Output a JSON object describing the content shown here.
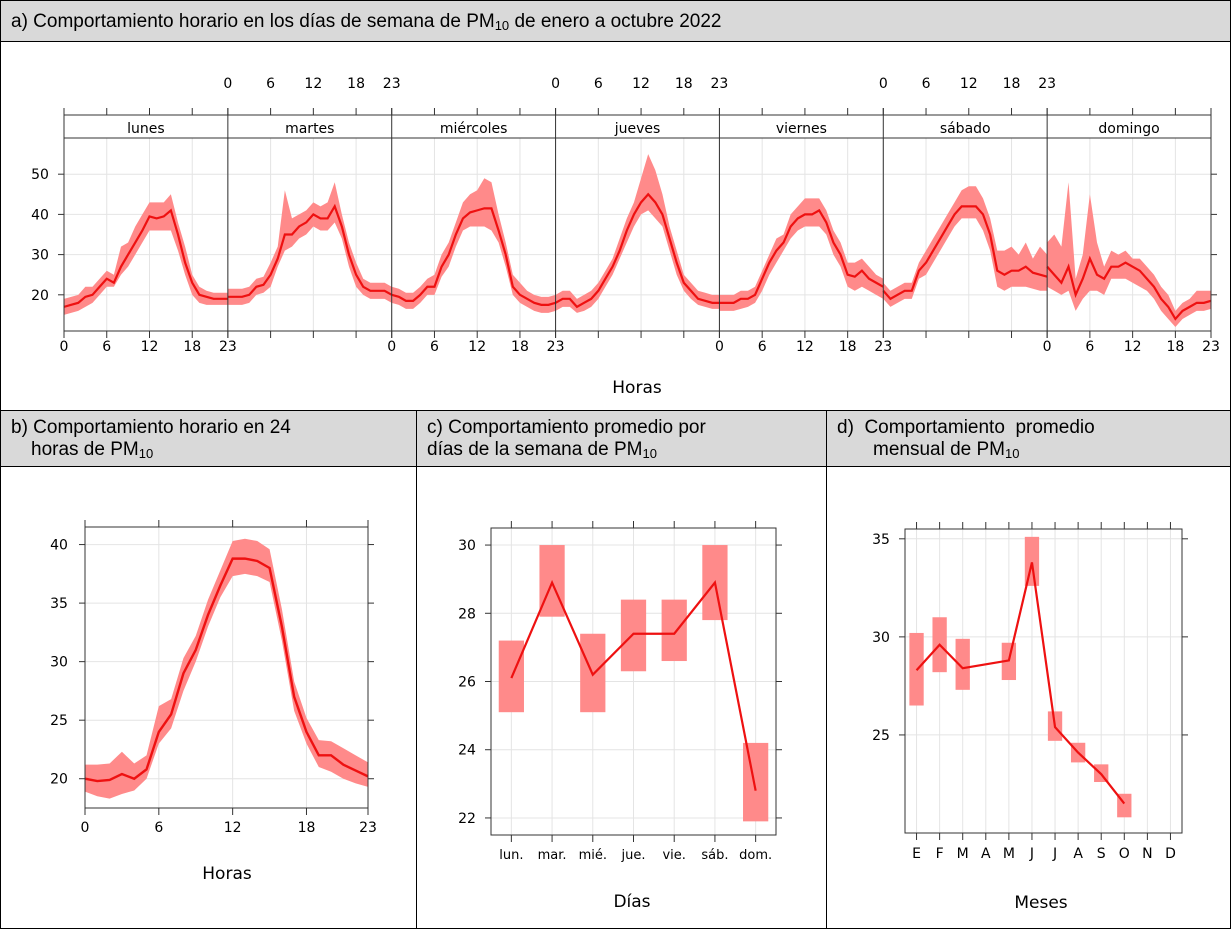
{
  "panels": {
    "a": {
      "title": "a) Comportamiento horario en los días de semana de PM",
      "title_sub": "10",
      "title_tail": " de enero a octubre 2022"
    },
    "b": {
      "title_1": "b) Comportamiento horario en 24",
      "title_2": "horas de PM",
      "title_sub": "10"
    },
    "c": {
      "title_1": "c) Comportamiento promedio por",
      "title_2": "días de la semana de PM",
      "title_sub": "10"
    },
    "d": {
      "title_1": "d)  Comportamiento  promedio",
      "title_2": "mensual de PM",
      "title_sub": "10"
    }
  },
  "colors": {
    "line": "#ee1111",
    "band": "#ff8a8a",
    "grid": "#e4e4e4"
  },
  "chart_data": [
    {
      "id": "a",
      "type": "line",
      "xlabel": "Horas",
      "ylabel": "",
      "ylim": [
        11,
        59
      ],
      "xticks": [
        0,
        6,
        12,
        18,
        23
      ],
      "yticks": [
        20,
        30,
        40,
        50
      ],
      "facets": [
        "lunes",
        "martes",
        "miércoles",
        "jueves",
        "viernes",
        "sábado",
        "domingo"
      ],
      "x": [
        0,
        1,
        2,
        3,
        4,
        5,
        6,
        7,
        8,
        9,
        10,
        11,
        12,
        13,
        14,
        15,
        16,
        17,
        18,
        19,
        20,
        21,
        22,
        23
      ],
      "series": [
        {
          "facet": "lunes",
          "values": [
            17,
            17.5,
            18,
            19.5,
            20,
            22,
            24,
            23,
            27,
            30,
            33,
            36,
            39.5,
            39,
            39.5,
            41,
            35,
            28,
            23,
            20,
            19.5,
            19,
            19,
            19
          ],
          "lower": [
            15,
            15.5,
            16,
            17,
            18,
            20,
            22,
            22,
            25,
            27,
            30,
            33,
            36,
            36,
            36,
            36,
            31,
            25,
            20,
            18,
            17.5,
            17.5,
            17.5,
            17.5
          ],
          "upper": [
            19,
            19.5,
            20,
            22,
            22,
            24,
            26,
            25,
            32,
            33,
            37,
            40,
            43,
            43,
            43,
            45,
            38,
            32,
            25,
            22,
            21,
            20.5,
            20.5,
            20.5
          ]
        },
        {
          "facet": "martes",
          "values": [
            19.5,
            19.5,
            19.5,
            20,
            22,
            22.5,
            25,
            29,
            35,
            35,
            37,
            38,
            40,
            39,
            39,
            42,
            37,
            30,
            25,
            22,
            21,
            21,
            21,
            20
          ],
          "lower": [
            17.5,
            17.5,
            17.5,
            18,
            20,
            20.5,
            22,
            27,
            31,
            32,
            34,
            35,
            37,
            36,
            36,
            38,
            34,
            27,
            22,
            20,
            19,
            19,
            19,
            18
          ],
          "upper": [
            21.5,
            21.5,
            21.5,
            22,
            24,
            24.5,
            28,
            32,
            46,
            39,
            40,
            41,
            43,
            42,
            43,
            48,
            40,
            33,
            28,
            24,
            23,
            23,
            23,
            22
          ]
        },
        {
          "facet": "miércoles",
          "values": [
            20,
            19.5,
            18.5,
            18.5,
            20,
            22,
            22,
            27,
            30,
            35,
            39,
            40.5,
            41,
            41.5,
            41.5,
            36,
            30,
            22,
            20,
            19,
            18,
            17.5,
            17.5,
            18
          ],
          "lower": [
            18,
            17.5,
            16.5,
            16.5,
            18,
            20,
            20,
            24.5,
            27,
            32,
            36,
            37,
            37,
            37,
            36,
            33,
            27,
            20,
            18,
            17,
            16,
            15.5,
            15.5,
            16
          ],
          "upper": [
            22,
            21.5,
            20.5,
            20.5,
            22,
            24,
            25,
            30,
            33,
            38,
            43,
            45,
            46,
            49,
            48,
            40,
            33,
            25,
            23,
            21,
            20,
            19.5,
            19.5,
            20
          ]
        },
        {
          "facet": "jueves",
          "values": [
            18,
            19,
            19,
            17,
            18,
            19,
            21,
            24,
            27,
            31,
            36,
            40,
            43,
            45,
            43,
            40,
            34,
            28,
            23,
            21,
            19,
            18.5,
            18,
            18
          ],
          "lower": [
            16,
            17,
            17,
            15.5,
            16,
            17,
            19,
            22,
            25,
            29,
            33,
            37,
            40,
            41,
            39,
            37,
            31,
            25,
            21,
            19,
            17.5,
            17,
            16.5,
            16.5
          ],
          "upper": [
            20,
            21,
            21,
            19,
            20,
            21,
            23,
            26,
            29,
            34,
            39,
            43,
            49,
            55,
            51,
            45,
            37,
            31,
            25,
            23,
            21,
            20.5,
            20,
            20
          ]
        },
        {
          "facet": "viernes",
          "values": [
            18,
            18,
            18,
            19,
            19,
            20,
            24,
            28,
            31,
            33,
            37,
            39,
            40,
            40,
            41,
            38,
            33,
            30,
            25,
            24.5,
            26,
            24,
            23,
            22
          ],
          "lower": [
            16,
            16,
            16,
            16.5,
            17,
            18,
            21,
            25,
            28,
            31,
            34,
            36,
            37,
            37,
            37,
            35,
            30,
            27,
            22,
            21,
            22,
            21,
            20,
            19
          ],
          "upper": [
            20,
            20,
            20,
            21,
            21,
            22,
            26,
            30,
            34,
            35,
            40,
            42,
            44,
            44,
            44,
            41,
            36,
            33,
            28,
            28,
            29,
            27,
            25,
            24
          ]
        },
        {
          "facet": "sábado",
          "values": [
            21,
            19,
            20,
            21,
            21,
            26,
            28,
            31,
            34,
            37,
            40,
            42,
            42,
            42,
            40,
            35,
            26,
            25,
            26,
            26,
            27,
            25.5,
            25,
            24.5
          ],
          "lower": [
            19,
            17,
            18,
            19,
            19,
            24,
            25,
            28,
            31,
            34,
            37,
            39,
            39,
            39,
            36,
            31,
            22,
            21,
            22,
            22,
            22,
            21.5,
            21,
            21
          ],
          "upper": [
            23,
            21,
            22,
            23,
            23,
            28,
            31,
            34,
            37,
            40,
            43,
            46,
            47,
            47,
            44,
            39,
            31,
            31,
            32,
            30,
            33,
            29,
            32,
            30
          ]
        },
        {
          "facet": "domingo",
          "values": [
            27,
            25,
            23,
            27,
            20,
            24,
            29,
            25,
            24,
            27,
            27,
            28,
            27,
            26,
            24,
            22,
            19,
            17,
            14,
            16,
            17,
            18,
            18,
            18.5
          ],
          "lower": [
            22,
            21,
            20,
            21,
            16,
            19,
            21,
            21,
            20,
            24,
            24,
            24,
            23,
            22,
            21,
            19,
            16,
            14,
            12,
            14,
            15,
            16,
            16,
            16.5
          ],
          "upper": [
            33,
            35,
            32,
            48,
            24,
            30,
            45,
            33,
            27,
            31,
            30,
            31,
            29,
            29,
            27,
            25,
            22,
            20,
            16,
            18,
            19,
            21,
            21,
            21
          ]
        }
      ]
    },
    {
      "id": "b",
      "type": "line",
      "xlabel": "Horas",
      "ylabel": "",
      "xlim": [
        0,
        23
      ],
      "ylim": [
        17.5,
        41.5
      ],
      "xticks": [
        0,
        6,
        12,
        18,
        23
      ],
      "yticks": [
        20,
        25,
        30,
        35,
        40
      ],
      "x": [
        0,
        1,
        2,
        3,
        4,
        5,
        6,
        7,
        8,
        9,
        10,
        11,
        12,
        13,
        14,
        15,
        16,
        17,
        18,
        19,
        20,
        21,
        22,
        23
      ],
      "values": [
        20,
        19.8,
        19.9,
        20.4,
        20,
        20.8,
        24,
        25.5,
        29,
        31,
        34,
        36.5,
        38.8,
        38.8,
        38.6,
        38,
        33,
        27,
        24,
        22,
        22,
        21.2,
        20.7,
        20.2
      ],
      "lower": [
        18.9,
        18.5,
        18.3,
        18.7,
        19,
        20,
        23,
        24.3,
        27.5,
        30,
        33,
        35.5,
        37.3,
        37.5,
        37.3,
        36.8,
        31.8,
        25.8,
        23,
        21,
        20.6,
        20,
        19.6,
        19.3
      ],
      "upper": [
        21.2,
        21.2,
        21.3,
        22.3,
        21.3,
        22,
        26.2,
        26.8,
        30.3,
        32.2,
        35.3,
        37.8,
        40.3,
        40.5,
        40.3,
        39.6,
        34.5,
        28.3,
        25.2,
        23.3,
        23.2,
        22.6,
        22,
        21.4
      ]
    },
    {
      "id": "c",
      "type": "line",
      "xlabel": "Días",
      "ylabel": "",
      "ylim": [
        21.5,
        30.5
      ],
      "yticks": [
        22,
        24,
        26,
        28,
        30
      ],
      "categories": [
        "lun.",
        "mar.",
        "mié.",
        "jue.",
        "vie.",
        "sáb.",
        "dom."
      ],
      "values": [
        26.1,
        28.9,
        26.2,
        27.4,
        27.4,
        28.9,
        22.8
      ],
      "lower": [
        25.1,
        27.9,
        25.1,
        26.3,
        26.6,
        27.8,
        21.9
      ],
      "upper": [
        27.2,
        30.0,
        27.4,
        28.4,
        28.4,
        30.0,
        24.2
      ]
    },
    {
      "id": "d",
      "type": "line",
      "xlabel": "Meses",
      "ylabel": "",
      "ylim": [
        20,
        35.5
      ],
      "yticks": [
        25,
        30,
        35
      ],
      "categories": [
        "E",
        "F",
        "M",
        "A",
        "M",
        "J",
        "J",
        "A",
        "S",
        "O",
        "N",
        "D"
      ],
      "values": [
        28.3,
        29.6,
        28.4,
        null,
        28.8,
        33.8,
        25.4,
        24.1,
        23.0,
        21.5,
        null,
        null
      ],
      "lower": [
        26.5,
        28.2,
        27.3,
        null,
        27.8,
        32.6,
        24.7,
        23.6,
        22.6,
        20.8,
        null,
        null
      ],
      "upper": [
        30.2,
        31.0,
        29.9,
        null,
        29.7,
        35.1,
        26.2,
        24.6,
        23.5,
        22.0,
        null,
        null
      ]
    }
  ]
}
